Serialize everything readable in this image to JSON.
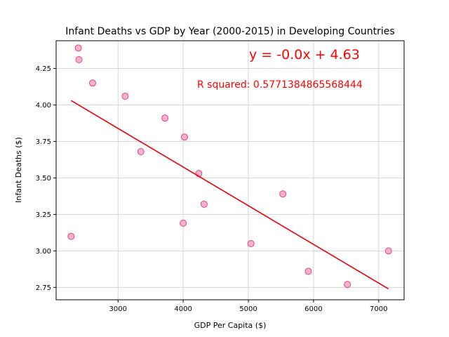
{
  "chart_data": {
    "type": "scatter",
    "title": "Infant Deaths vs GDP by Year (2000-2015) in Developing Countries",
    "xlabel": "GDP Per Capita ($)",
    "ylabel": "Infant Deaths ($)",
    "xlim": [
      2050,
      7390
    ],
    "ylim": [
      2.665,
      4.44
    ],
    "x_ticks": [
      3000,
      4000,
      5000,
      6000,
      7000
    ],
    "y_ticks": [
      2.75,
      3.0,
      3.25,
      3.5,
      3.75,
      4.0,
      4.25
    ],
    "x_tick_labels": [
      "3000",
      "4000",
      "5000",
      "6000",
      "7000"
    ],
    "y_tick_labels": [
      "2.75",
      "3.00",
      "3.25",
      "3.50",
      "3.75",
      "4.00",
      "4.25"
    ],
    "grid": true,
    "points": [
      {
        "x": 2280,
        "y": 3.1
      },
      {
        "x": 2390,
        "y": 4.39
      },
      {
        "x": 2400,
        "y": 4.31
      },
      {
        "x": 2610,
        "y": 4.15
      },
      {
        "x": 3110,
        "y": 4.06
      },
      {
        "x": 3350,
        "y": 3.68
      },
      {
        "x": 3720,
        "y": 3.91
      },
      {
        "x": 4000,
        "y": 3.19
      },
      {
        "x": 4020,
        "y": 3.78
      },
      {
        "x": 4240,
        "y": 3.53
      },
      {
        "x": 4320,
        "y": 3.32
      },
      {
        "x": 5040,
        "y": 3.05
      },
      {
        "x": 5530,
        "y": 3.39
      },
      {
        "x": 5920,
        "y": 2.86
      },
      {
        "x": 6520,
        "y": 2.77
      },
      {
        "x": 7150,
        "y": 3.0
      }
    ],
    "regression": {
      "x_start": 2280,
      "y_start": 4.03,
      "x_end": 7150,
      "y_end": 2.74,
      "equation_text": "y = -0.0x + 4.63",
      "r_squared_text": "R squared: 0.5771384865568444"
    },
    "colors": {
      "point_fill": "#f4a3c8",
      "point_edge": "#e0457b",
      "line": "#e8000b",
      "annotation": "#ff0000",
      "grid": "#d6d6d6"
    }
  }
}
